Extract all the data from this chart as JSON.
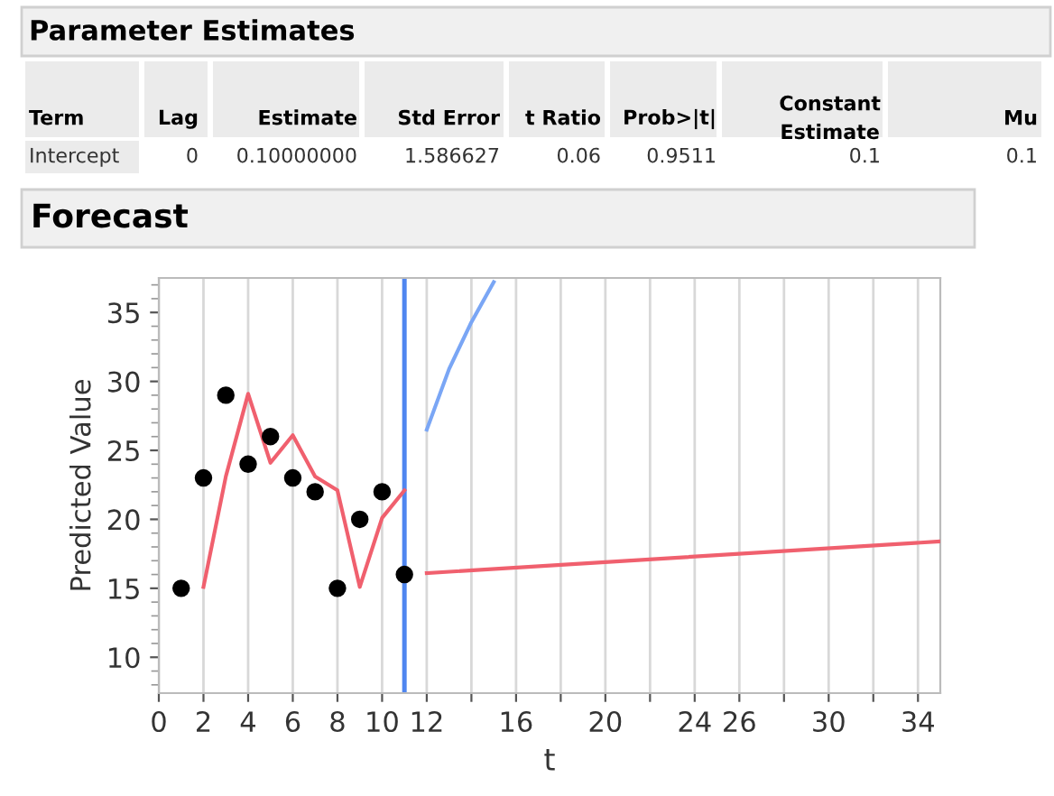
{
  "chart_data": {
    "type": "line",
    "title": "Forecast",
    "xlabel": "t",
    "ylabel": "Predicted Value",
    "annotations": [
      "Parameter Estimates",
      "Term",
      "Lag",
      "Estimate",
      "Std Error",
      "t Ratio",
      "Prob>|t|",
      "Constant\nEstimate",
      "Mu",
      "Intercept",
      "0",
      "0.10000000",
      "1.586627",
      "0.06",
      "0.9511",
      "0.1",
      "0.1"
    ],
    "xlim": [
      0,
      35
    ],
    "xticks": [
      0,
      2,
      4,
      6,
      8,
      10,
      12,
      {
        "value": 14,
        "label": null
      },
      16,
      {
        "value": 18,
        "label": null
      },
      20,
      {
        "value": 22,
        "label": null
      },
      24,
      26,
      {
        "value": 28,
        "label": null
      },
      30,
      {
        "value": 32,
        "label": null
      },
      34
    ],
    "ylim": [
      7.4,
      37.5
    ],
    "yticks": [
      10,
      15,
      20,
      25,
      30,
      35
    ],
    "grid": "x",
    "legend": false,
    "ref_lines": [
      {
        "axis": "x",
        "value": 11,
        "color": "#4f86f0"
      }
    ],
    "series": [
      {
        "type": "scatter",
        "marker": "circle",
        "color": "#000000",
        "x": [
          1,
          2,
          3,
          4,
          5,
          6,
          7,
          8,
          9,
          10,
          11
        ],
        "values": [
          15,
          23,
          29,
          24,
          26,
          23,
          22,
          15,
          20,
          22,
          16
        ]
      },
      {
        "color": "#f0606e",
        "x": [
          2,
          3,
          4,
          5,
          6,
          7,
          8,
          9,
          10,
          11
        ],
        "values": [
          15.1,
          23.1,
          29.1,
          24.1,
          26.1,
          23.1,
          22.1,
          15.1,
          20.1,
          22.1
        ]
      },
      {
        "color": "#f0606e",
        "x": [
          12,
          35
        ],
        "values": [
          16.1,
          18.4
        ]
      },
      {
        "color": "#7aa6f5",
        "x": [
          12,
          13,
          14,
          15
        ],
        "values": [
          26.5,
          30.9,
          34.3,
          37.2
        ]
      }
    ]
  }
}
